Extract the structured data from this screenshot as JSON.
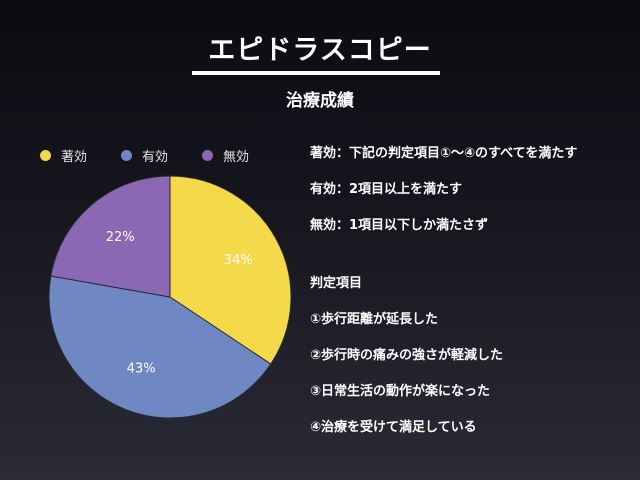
{
  "slide": {
    "title": "エピドラスコピー",
    "subtitle": "治療成績"
  },
  "legend": [
    {
      "label": "著効",
      "color": "#f4d94a"
    },
    {
      "label": "有効",
      "color": "#6f87c3"
    },
    {
      "label": "無効",
      "color": "#8a68b3"
    }
  ],
  "chart_data": {
    "type": "pie",
    "slices": [
      {
        "name": "著効",
        "value": 34,
        "label": "34%",
        "color": "#f4d94a"
      },
      {
        "name": "有効",
        "value": 43,
        "label": "43%",
        "color": "#6f87c3"
      },
      {
        "name": "無効",
        "value": 22,
        "label": "22%",
        "color": "#8a68b3"
      }
    ],
    "legend_position": "top"
  },
  "definitions": [
    "著効：下記の判定項目①〜④のすべてを満たす",
    "有効：2項目以上を満たす",
    "無効：1項目以下しか満たさず"
  ],
  "criteria": {
    "heading": "判定項目",
    "items": [
      "①歩行距離が延長した",
      "②歩行時の痛みの強さが軽減した",
      "③日常生活の動作が楽になった",
      "④治療を受けて満足している"
    ]
  }
}
